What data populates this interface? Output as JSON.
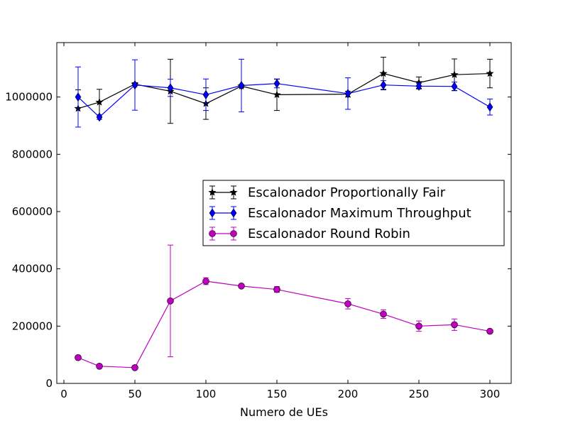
{
  "chart_data": {
    "type": "line",
    "title": "",
    "xlabel": "Numero de UEs",
    "ylabel": "",
    "xlim": [
      -5,
      315
    ],
    "ylim": [
      0,
      1190000
    ],
    "xticks": [
      0,
      50,
      100,
      150,
      200,
      250,
      300
    ],
    "yticks": [
      0,
      200000,
      400000,
      600000,
      800000,
      1000000
    ],
    "legend_position": "center-right",
    "grid": false,
    "series": [
      {
        "name": "Escalonador Proportionally Fair",
        "color": "#000000",
        "marker": "star",
        "x": [
          10,
          25,
          50,
          75,
          100,
          125,
          150,
          200,
          225,
          250,
          275,
          300
        ],
        "y": [
          960000,
          982000,
          1045000,
          1020000,
          977000,
          1038000,
          1008000,
          1010000,
          1082000,
          1050000,
          1078000,
          1082000
        ],
        "err": [
          65000,
          45000,
          5000,
          112000,
          55000,
          5000,
          55000,
          10000,
          57000,
          20000,
          55000,
          50000
        ]
      },
      {
        "name": "Escalonador Maximum Throughput",
        "color": "#0000ff",
        "marker": "diamond",
        "x": [
          10,
          25,
          50,
          75,
          100,
          125,
          150,
          200,
          225,
          250,
          275,
          300
        ],
        "y": [
          1000000,
          930000,
          1042000,
          1032000,
          1008000,
          1040000,
          1047000,
          1012000,
          1042000,
          1038000,
          1037000,
          965000
        ],
        "err": [
          105000,
          8000,
          88000,
          30000,
          55000,
          92000,
          15000,
          55000,
          15000,
          10000,
          15000,
          28000
        ]
      },
      {
        "name": "Escalonador Round Robin",
        "color": "#bf00bf",
        "marker": "circle",
        "x": [
          10,
          25,
          50,
          75,
          100,
          125,
          150,
          200,
          225,
          250,
          275,
          300
        ],
        "y": [
          90000,
          60000,
          55000,
          288000,
          357000,
          340000,
          328000,
          278000,
          242000,
          200000,
          205000,
          182000
        ],
        "err": [
          3000,
          2000,
          2000,
          195000,
          12000,
          5000,
          10000,
          18000,
          15000,
          18000,
          20000,
          5000
        ]
      }
    ]
  }
}
